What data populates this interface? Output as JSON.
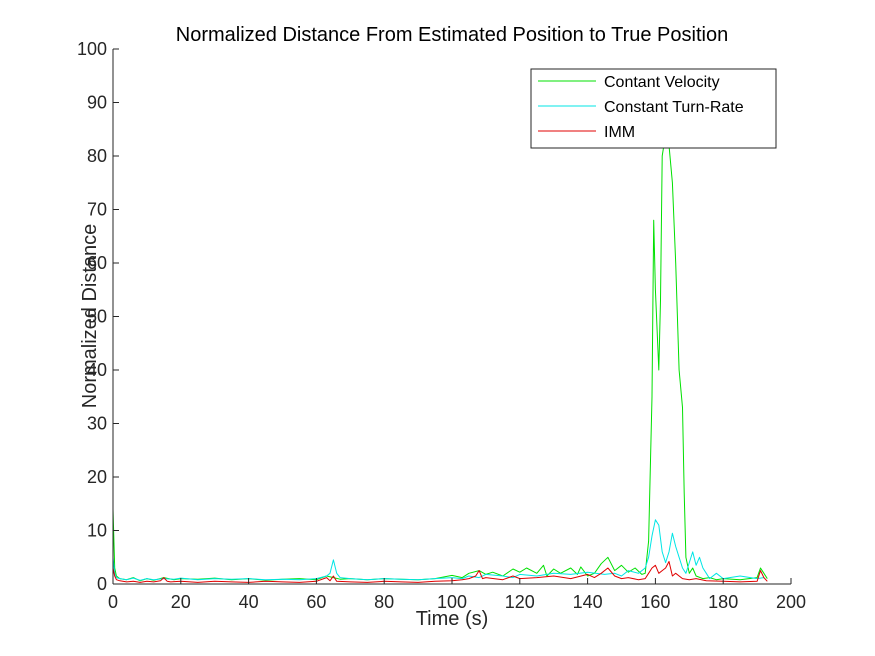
{
  "chart_data": {
    "type": "line",
    "title": "Normalized Distance From Estimated Position to True Position",
    "xlabel": "Time (s)",
    "ylabel": "Normalized Distance",
    "xlim": [
      0,
      200
    ],
    "ylim": [
      0,
      100
    ],
    "xticks": [
      "0",
      "20",
      "40",
      "60",
      "80",
      "100",
      "120",
      "140",
      "160",
      "180",
      "200"
    ],
    "yticks": [
      "0",
      "10",
      "20",
      "30",
      "40",
      "50",
      "60",
      "70",
      "80",
      "90",
      "100"
    ],
    "grid": false,
    "legend_position": "top-right",
    "series": [
      {
        "name": "Contant Velocity",
        "color": "#00e000",
        "x": [
          0,
          0.5,
          1,
          2,
          4,
          6,
          8,
          10,
          12,
          15,
          18,
          20,
          25,
          30,
          35,
          40,
          45,
          50,
          55,
          60,
          63,
          65,
          67,
          70,
          75,
          80,
          85,
          90,
          95,
          100,
          103,
          105,
          108,
          110,
          112,
          115,
          118,
          120,
          122,
          125,
          127,
          128,
          130,
          132,
          135,
          137,
          138,
          140,
          142,
          144,
          146,
          148,
          150,
          152,
          154,
          156,
          157,
          158,
          159,
          159.5,
          160,
          161,
          161.5,
          162,
          163,
          164,
          165,
          166,
          167,
          168,
          168.5,
          169,
          170,
          171,
          172,
          174,
          176,
          178,
          180,
          185,
          190,
          191,
          192,
          193
        ],
        "y": [
          14,
          3,
          1.5,
          1,
          0.8,
          1.2,
          0.6,
          1,
          0.7,
          1.2,
          0.8,
          1,
          0.9,
          1.1,
          0.8,
          1,
          0.7,
          0.9,
          1,
          0.8,
          1.5,
          1.2,
          0.9,
          1,
          0.8,
          1,
          0.9,
          0.8,
          1,
          1.6,
          1.2,
          2,
          2.5,
          1.8,
          2.2,
          1.5,
          2.8,
          2.2,
          3,
          2,
          3.5,
          1.5,
          2.8,
          2,
          3,
          1.8,
          3.2,
          1.5,
          2,
          3.8,
          5,
          2.5,
          3.5,
          2.2,
          3,
          1.8,
          2,
          8,
          35,
          68,
          55,
          40,
          53,
          80,
          84,
          82,
          75,
          60,
          40,
          33,
          17,
          5,
          2,
          3,
          1.5,
          1,
          1.2,
          0.8,
          1,
          0.8,
          1.2,
          3,
          2,
          1
        ]
      },
      {
        "name": "Constant Turn-Rate",
        "color": "#00e5e5",
        "x": [
          0,
          0.5,
          1,
          2,
          4,
          6,
          8,
          10,
          12,
          15,
          18,
          20,
          25,
          30,
          35,
          40,
          45,
          50,
          55,
          60,
          63,
          64,
          65,
          66,
          67,
          70,
          75,
          80,
          85,
          90,
          95,
          100,
          103,
          105,
          108,
          110,
          115,
          118,
          120,
          125,
          130,
          135,
          140,
          145,
          148,
          150,
          152,
          155,
          157,
          158,
          159,
          160,
          161,
          162,
          163,
          164,
          165,
          166,
          167,
          168,
          169,
          170,
          171,
          172,
          173,
          174,
          175,
          176,
          178,
          180,
          185,
          190,
          192
        ],
        "y": [
          5,
          2,
          1.2,
          1,
          0.8,
          1.1,
          0.7,
          1,
          0.8,
          1,
          0.9,
          1.1,
          0.8,
          1,
          0.9,
          1,
          0.8,
          0.9,
          0.8,
          1,
          1.5,
          2,
          4.5,
          2,
          1.2,
          1,
          0.8,
          1,
          0.9,
          0.8,
          1,
          1.2,
          1,
          1.5,
          1.2,
          1.8,
          1.5,
          1.2,
          1.8,
          1.5,
          2,
          1.8,
          2.2,
          1.8,
          2,
          1.5,
          2.5,
          2,
          3,
          5,
          9,
          12,
          11,
          6,
          4,
          6,
          9.5,
          7,
          5,
          3,
          2,
          4,
          6,
          3.5,
          5,
          3,
          2,
          1,
          2,
          1,
          1.5,
          1,
          1.2
        ]
      },
      {
        "name": "IMM",
        "color": "#e00000",
        "x": [
          0,
          0.5,
          1,
          2,
          4,
          6,
          8,
          10,
          12,
          14,
          15,
          16,
          17,
          20,
          25,
          30,
          35,
          40,
          45,
          50,
          55,
          60,
          63,
          64,
          65,
          66,
          70,
          75,
          80,
          85,
          90,
          95,
          100,
          103,
          105,
          107,
          108,
          109,
          110,
          115,
          118,
          120,
          125,
          130,
          135,
          140,
          142,
          144,
          146,
          148,
          150,
          152,
          155,
          157,
          158,
          159,
          160,
          161,
          162,
          163,
          164,
          165,
          166,
          168,
          170,
          172,
          175,
          180,
          185,
          190,
          191,
          192,
          193
        ],
        "y": [
          3,
          1.5,
          0.8,
          0.6,
          0.4,
          0.5,
          0.3,
          0.5,
          0.4,
          0.6,
          1.2,
          0.5,
          0.4,
          0.5,
          0.3,
          0.5,
          0.4,
          0.3,
          0.5,
          0.4,
          0.3,
          0.5,
          1.2,
          0.6,
          1.5,
          0.5,
          0.4,
          0.3,
          0.5,
          0.4,
          0.3,
          0.5,
          0.6,
          0.8,
          1,
          1.5,
          2.5,
          1,
          1.2,
          0.8,
          1.5,
          1,
          1.2,
          1.5,
          1,
          1.8,
          1.2,
          2,
          3,
          1.5,
          1,
          1.2,
          0.8,
          1,
          2,
          3,
          3.5,
          2,
          2.5,
          3,
          4.2,
          1.5,
          2,
          1,
          0.8,
          1,
          0.6,
          0.5,
          0.4,
          0.5,
          2.5,
          1.2,
          0.5
        ]
      }
    ]
  }
}
